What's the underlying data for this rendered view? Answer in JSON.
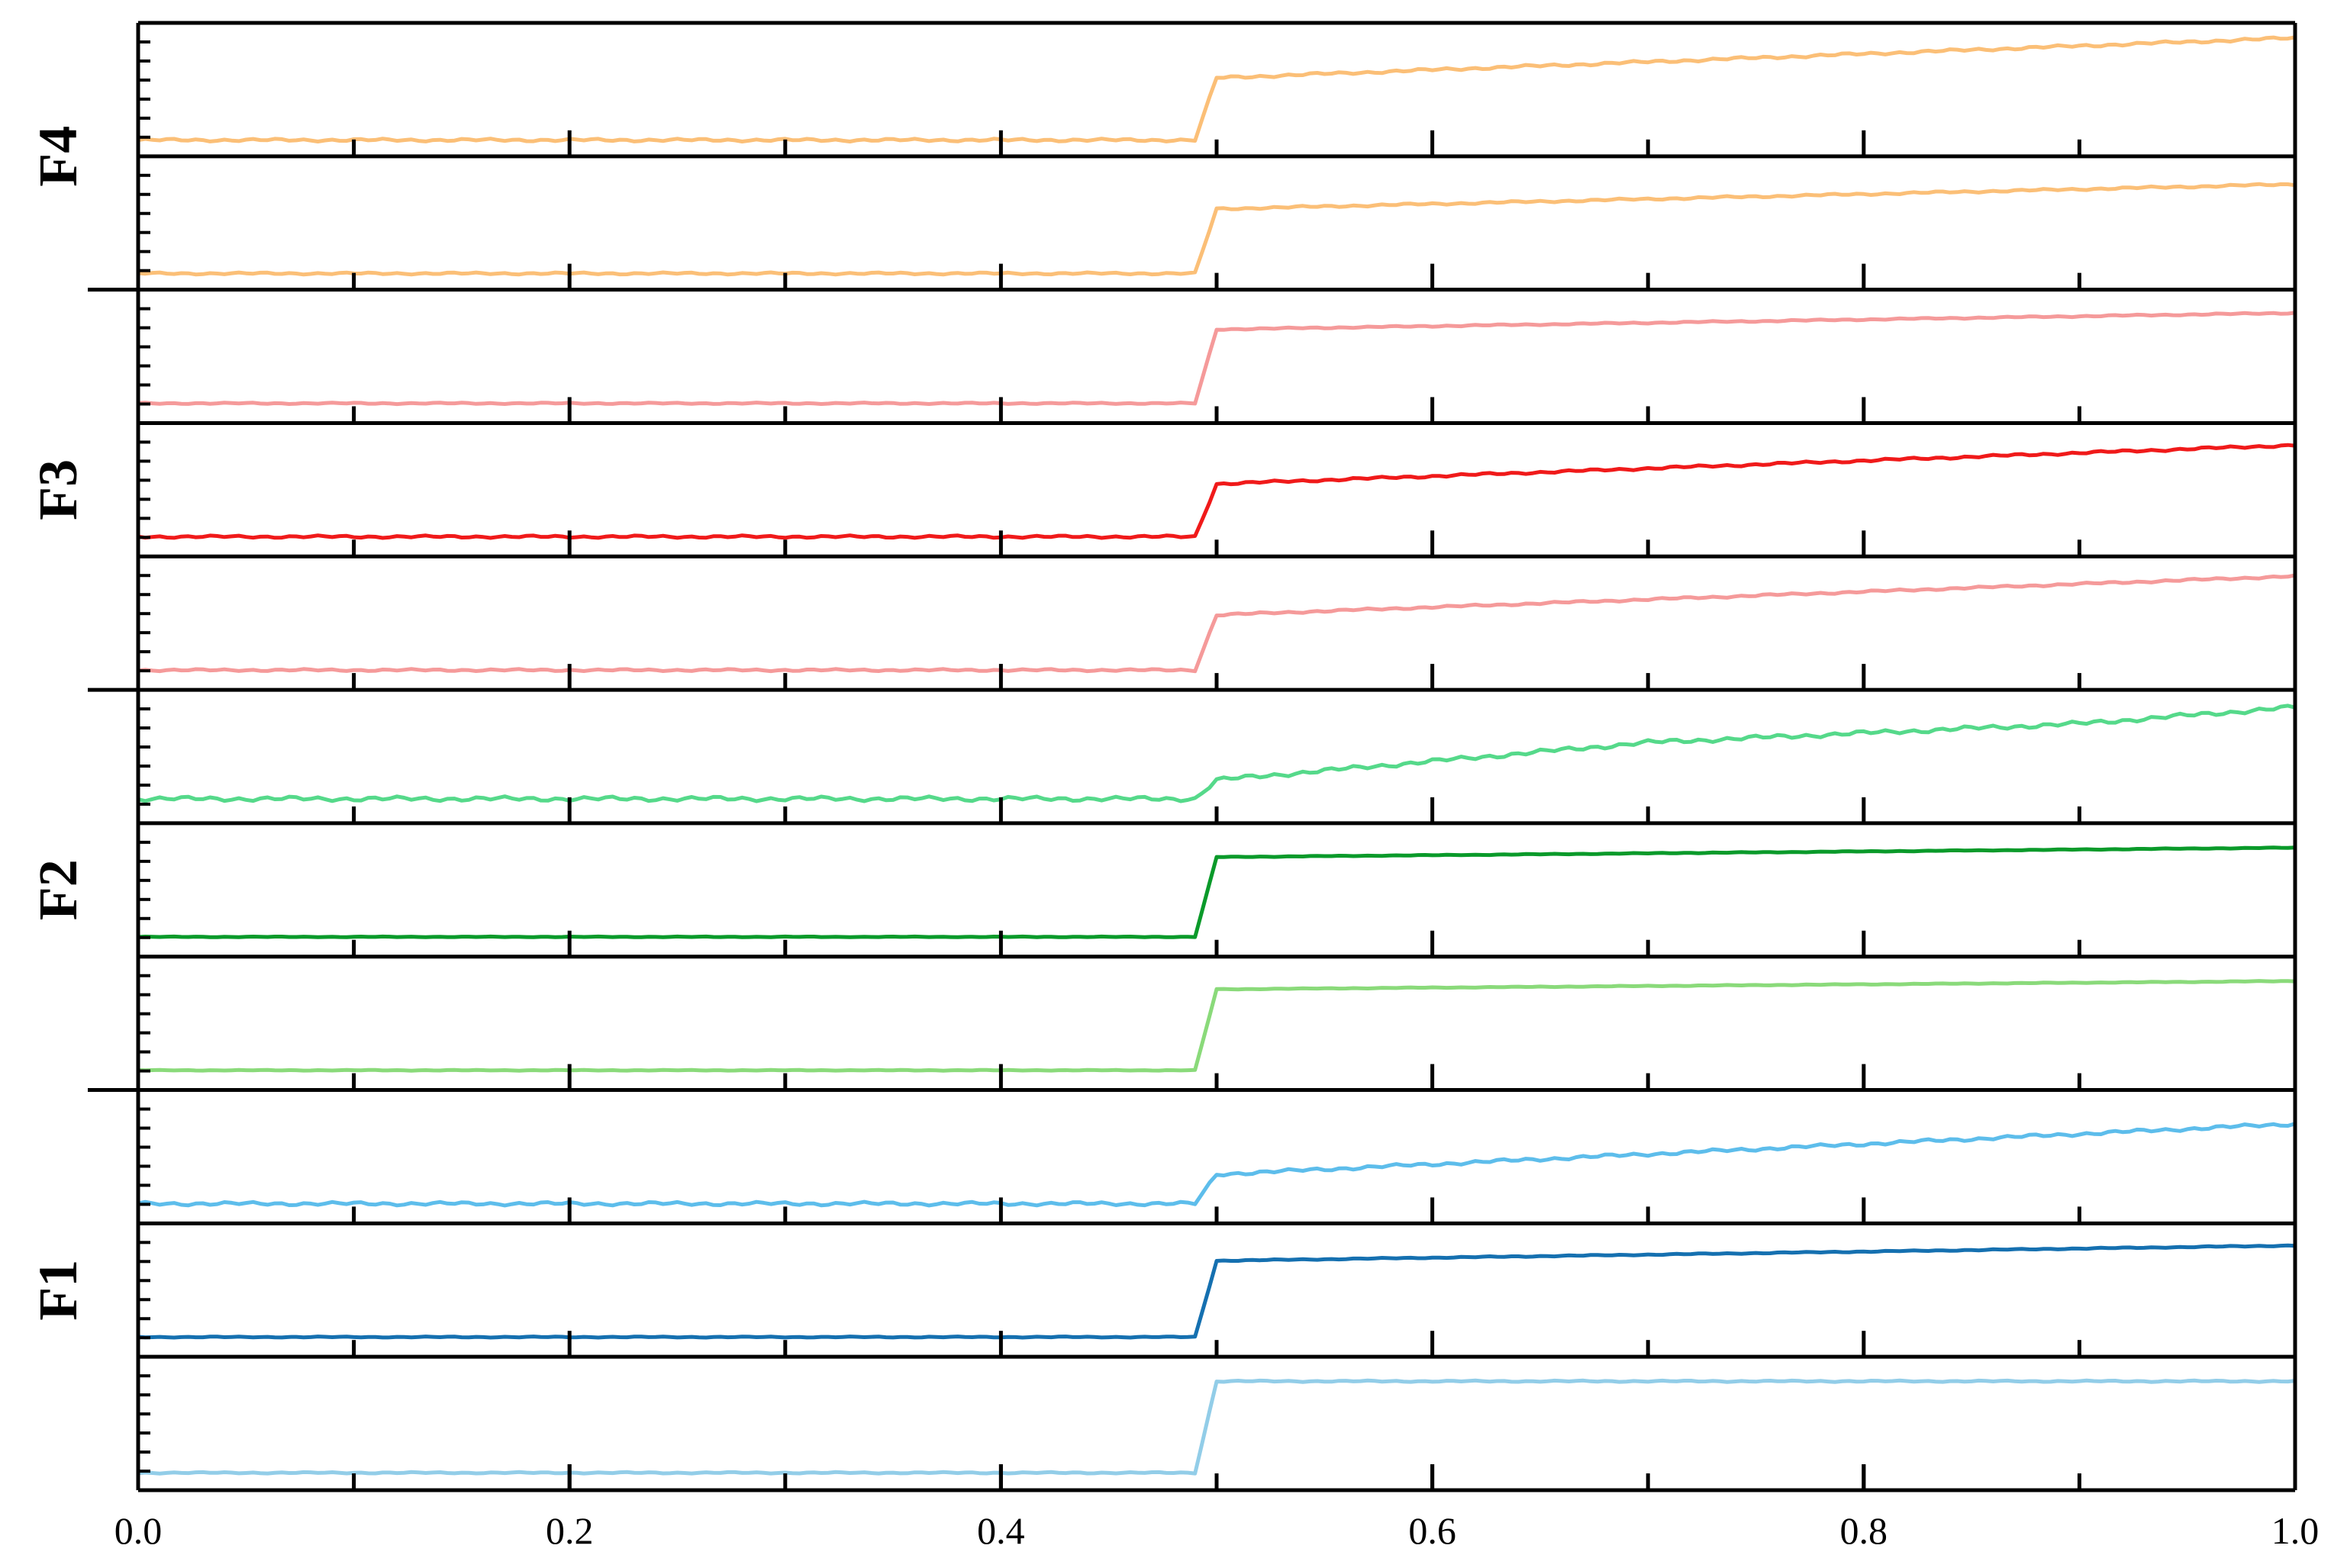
{
  "chart_data": {
    "type": "line",
    "title": "",
    "xlabel": "",
    "ylabel": "",
    "xlim": [
      0.0,
      1.0
    ],
    "ylim": [
      0,
      1
    ],
    "x_ticks": [
      "0.0",
      "0.2",
      "0.4",
      "0.6",
      "0.8",
      "1.0"
    ],
    "x_tick_values": [
      0.0,
      0.2,
      0.4,
      0.6,
      0.8,
      1.0
    ],
    "x_minor_step": 0.1,
    "y_tick_labels_shown": false,
    "grid": false,
    "legend": "none",
    "step_at": 0.49,
    "group_labels": [
      {
        "text": "F4",
        "panels": [
          0,
          1
        ]
      },
      {
        "text": "F3",
        "panels": [
          2,
          3,
          4
        ]
      },
      {
        "text": "F2",
        "panels": [
          5,
          6,
          7
        ]
      },
      {
        "text": "F1",
        "panels": [
          8,
          9,
          10
        ]
      }
    ],
    "group_separators_after_panel": [
      1,
      4,
      7
    ],
    "series": [
      {
        "color": "#FBBF77",
        "x": [
          0.0,
          0.49,
          0.5,
          1.0
        ],
        "y": [
          0.07,
          0.07,
          0.6,
          0.94
        ],
        "noise": 0.008
      },
      {
        "color": "#FBBF77",
        "x": [
          0.0,
          0.49,
          0.5,
          1.0
        ],
        "y": [
          0.07,
          0.07,
          0.62,
          0.83
        ],
        "noise": 0.006
      },
      {
        "color": "#F59A9A",
        "x": [
          0.0,
          0.49,
          0.5,
          1.0
        ],
        "y": [
          0.1,
          0.1,
          0.73,
          0.87
        ],
        "noise": 0.004
      },
      {
        "color": "#F01A1A",
        "x": [
          0.0,
          0.49,
          0.5,
          1.0
        ],
        "y": [
          0.1,
          0.1,
          0.55,
          0.88
        ],
        "noise": 0.007
      },
      {
        "color": "#F59A9A",
        "x": [
          0.0,
          0.49,
          0.5,
          1.0
        ],
        "y": [
          0.1,
          0.1,
          0.57,
          0.9
        ],
        "noise": 0.006
      },
      {
        "color": "#55D98A",
        "x": [
          0.0,
          0.49,
          0.5,
          0.7,
          0.9,
          1.0
        ],
        "y": [
          0.14,
          0.14,
          0.3,
          0.62,
          0.78,
          0.92
        ],
        "noise": 0.013
      },
      {
        "color": "#0A9A2A",
        "x": [
          0.0,
          0.49,
          0.5,
          1.0
        ],
        "y": [
          0.1,
          0.1,
          0.78,
          0.86
        ],
        "noise": 0.002
      },
      {
        "color": "#8ADA7A",
        "x": [
          0.0,
          0.49,
          0.5,
          1.0
        ],
        "y": [
          0.1,
          0.1,
          0.79,
          0.86
        ],
        "noise": 0.002
      },
      {
        "color": "#5DBDEB",
        "x": [
          0.0,
          0.49,
          0.5,
          1.0
        ],
        "y": [
          0.1,
          0.1,
          0.35,
          0.78
        ],
        "noise": 0.01
      },
      {
        "color": "#1570B0",
        "x": [
          0.0,
          0.49,
          0.5,
          1.0
        ],
        "y": [
          0.1,
          0.1,
          0.75,
          0.88
        ],
        "noise": 0.003
      },
      {
        "color": "#92CDE8",
        "x": [
          0.0,
          0.49,
          0.5,
          1.0
        ],
        "y": [
          0.08,
          0.08,
          0.86,
          0.86
        ],
        "noise": 0.004
      }
    ]
  }
}
